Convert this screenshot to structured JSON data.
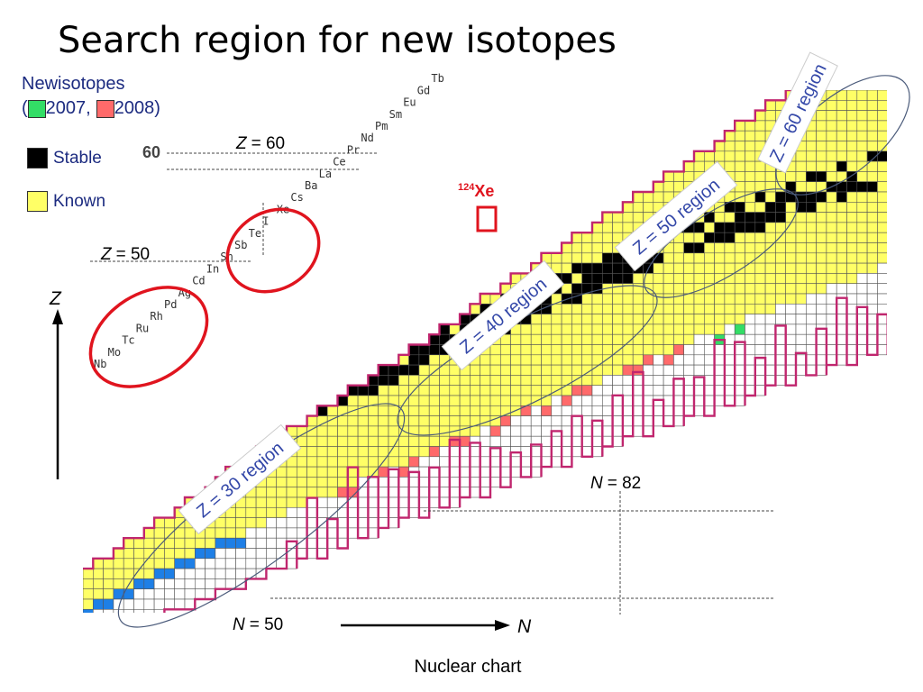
{
  "title": "Search region for new isotopes",
  "legend": {
    "heading": "Newisotopes",
    "open_paren": "(",
    "year_2007": "2007,",
    "year_2008": "2008)",
    "color_2007": "#33dd66",
    "color_2008": "#ff6a6a",
    "stable_label": "Stable",
    "stable_color": "#000000",
    "known_label": "Known",
    "known_color": "#ffff66"
  },
  "element_labels": [
    "Nb",
    "Mo",
    "Tc",
    "Ru",
    "Rh",
    "Pd",
    "Ag",
    "Cd",
    "In",
    "Sn",
    "Sb",
    "Te",
    "I",
    "Xe",
    "Cs",
    "Ba",
    "La",
    "Ce",
    "Pr",
    "Nd",
    "Pm",
    "Sm",
    "Eu",
    "Gd",
    "Tb"
  ],
  "axis": {
    "z_tick": "60",
    "z_label": "Z",
    "n_label": "N",
    "z60_text": "= 60",
    "z50_text": "= 50",
    "n82_text": "= 82",
    "n50_text": "= 50",
    "z_letter": "Z",
    "n_letter": "N"
  },
  "highlight": {
    "mass": "124",
    "symbol": "Xe"
  },
  "regions": [
    "Z = 60 region",
    "Z = 50 region",
    "Z = 40 region",
    "Z = 30 region"
  ],
  "caption": "Nuclear chart",
  "colors": {
    "known": "#ffff66",
    "stable": "#000000",
    "new2008": "#ff6a6a",
    "new2007": "#33dd66",
    "blue": "#1e7fe6",
    "boundary": "#c0266e",
    "circle": "#e0141e",
    "ellipse": "#4a5a7a",
    "region_text": "#3347a8"
  }
}
